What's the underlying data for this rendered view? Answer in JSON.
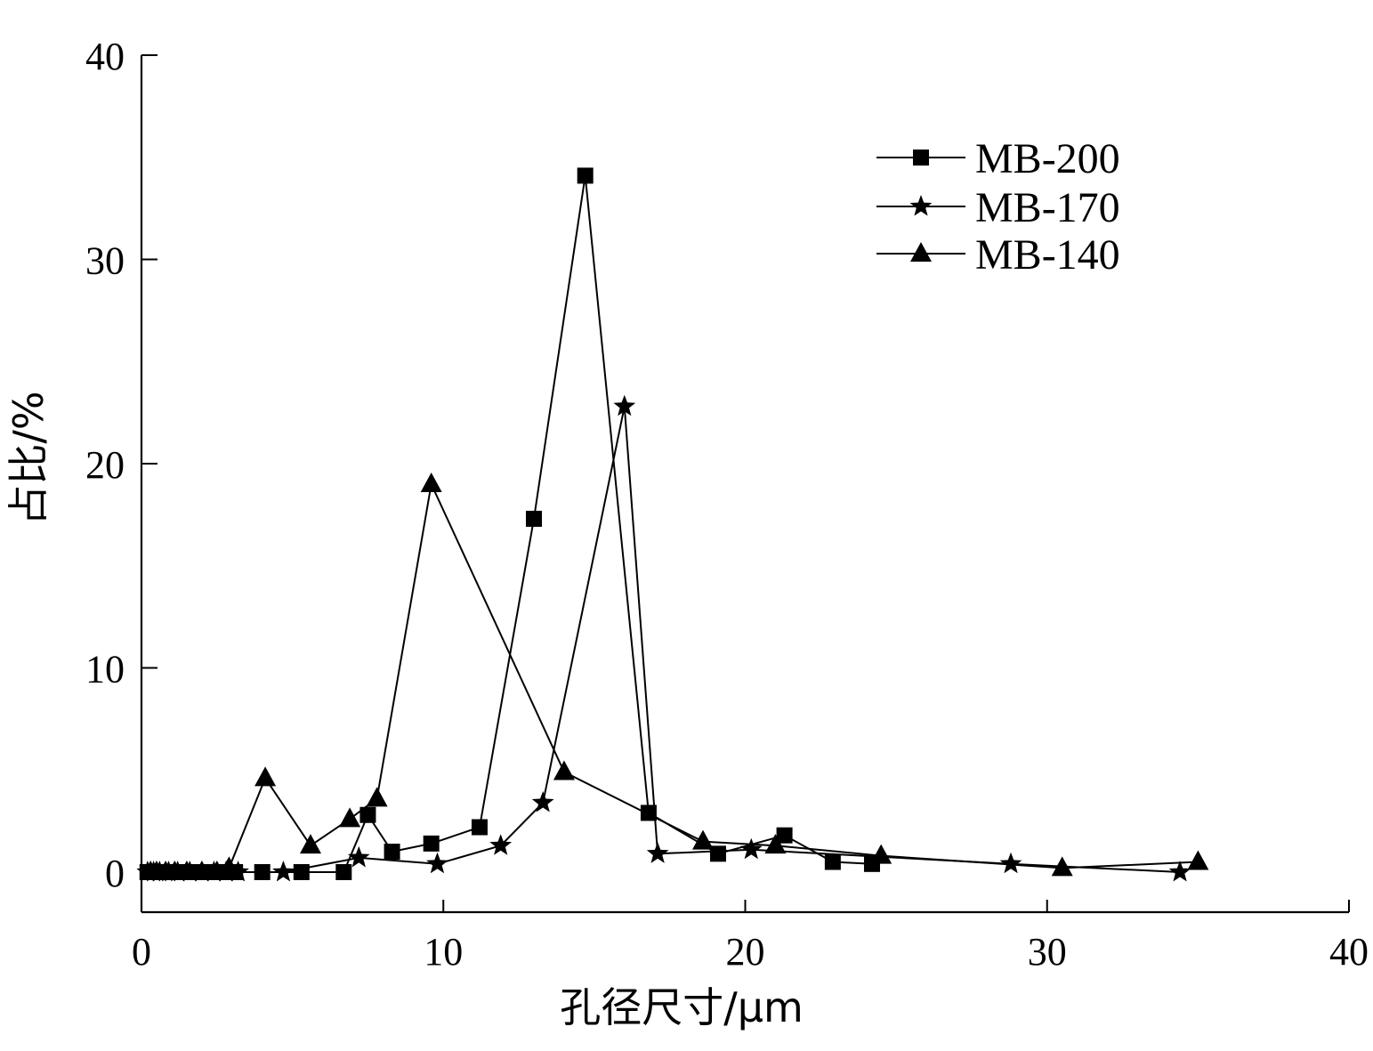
{
  "chart_data": {
    "type": "line",
    "title": "",
    "xlabel": "孔径尺寸/μm",
    "ylabel": "占比/%",
    "xlim": [
      0,
      40
    ],
    "ylim": [
      -1.9,
      40
    ],
    "xticks": [
      0,
      10,
      20,
      30,
      40
    ],
    "yticks": [
      0,
      10,
      20,
      30,
      40
    ],
    "grid": false,
    "legend_position": "top-right",
    "series": [
      {
        "name": "MB-200",
        "marker": "square",
        "color": "#000000",
        "x": [
          0.2,
          0.3,
          0.5,
          0.7,
          0.9,
          1.2,
          1.5,
          1.8,
          2.1,
          2.4,
          2.7,
          3.1,
          4.0,
          5.3,
          6.7,
          7.5,
          8.3,
          9.6,
          11.2,
          13.0,
          14.7,
          16.8,
          19.1,
          21.3,
          22.9,
          24.2
        ],
        "values": [
          0.0,
          0.0,
          0.0,
          0.0,
          0.0,
          0.0,
          0.0,
          0.0,
          0.0,
          0.0,
          0.0,
          0.0,
          0.0,
          0.0,
          0.0,
          2.8,
          1.0,
          1.4,
          2.2,
          17.3,
          34.1,
          2.9,
          0.9,
          1.8,
          0.5,
          0.4
        ]
      },
      {
        "name": "MB-170",
        "marker": "star",
        "color": "#000000",
        "x": [
          0.2,
          0.4,
          0.6,
          0.9,
          1.2,
          1.6,
          2.0,
          2.4,
          2.8,
          3.2,
          4.7,
          7.2,
          9.8,
          11.9,
          13.3,
          16.0,
          17.1,
          20.2,
          28.8,
          34.4
        ],
        "values": [
          0.0,
          0.0,
          0.0,
          0.0,
          0.0,
          0.0,
          0.0,
          0.0,
          0.0,
          0.0,
          0.0,
          0.7,
          0.4,
          1.3,
          3.4,
          22.8,
          0.9,
          1.1,
          0.4,
          0.0
        ]
      },
      {
        "name": "MB-140",
        "marker": "triangle",
        "color": "#000000",
        "x": [
          0.3,
          0.5,
          0.8,
          1.1,
          1.5,
          2.0,
          2.5,
          2.9,
          4.1,
          5.6,
          6.9,
          7.8,
          9.6,
          14.0,
          18.6,
          21.0,
          24.5,
          30.5,
          35.0
        ],
        "values": [
          0.0,
          0.0,
          0.0,
          0.0,
          0.0,
          0.0,
          0.0,
          0.2,
          4.6,
          1.3,
          2.6,
          3.6,
          19.0,
          4.9,
          1.5,
          1.3,
          0.8,
          0.2,
          0.5
        ]
      }
    ]
  }
}
